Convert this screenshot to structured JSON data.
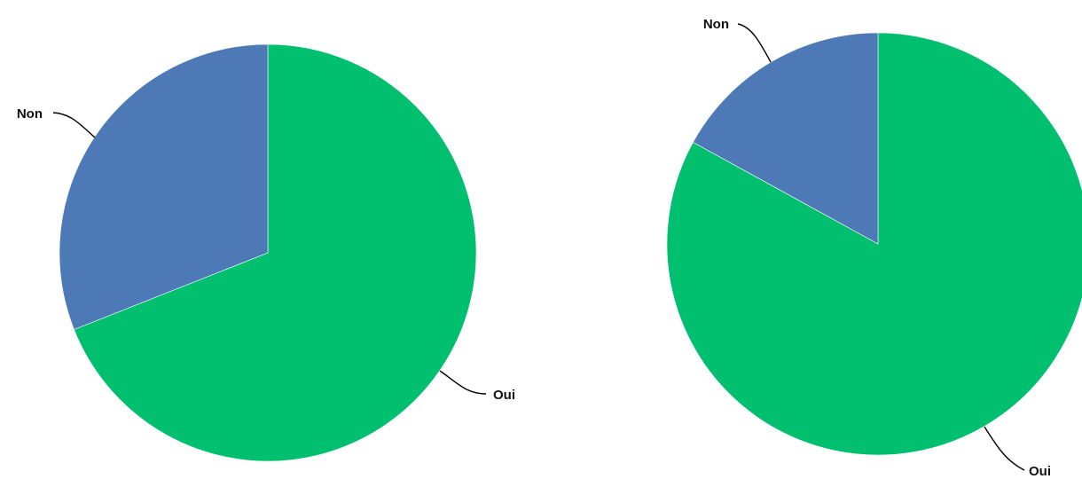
{
  "chart_data": [
    {
      "type": "pie",
      "title": "",
      "start_angle_deg": 0,
      "direction": "clockwise",
      "slices": [
        {
          "label": "Oui",
          "value": 69,
          "color": "#00BF6F"
        },
        {
          "label": "Non",
          "value": 31,
          "color": "#4D7AB6"
        }
      ]
    },
    {
      "type": "pie",
      "title": "",
      "start_angle_deg": 0,
      "direction": "clockwise",
      "slices": [
        {
          "label": "Oui",
          "value": 83,
          "color": "#00BF6F"
        },
        {
          "label": "Non",
          "value": 17,
          "color": "#4D7AB6"
        }
      ]
    }
  ]
}
